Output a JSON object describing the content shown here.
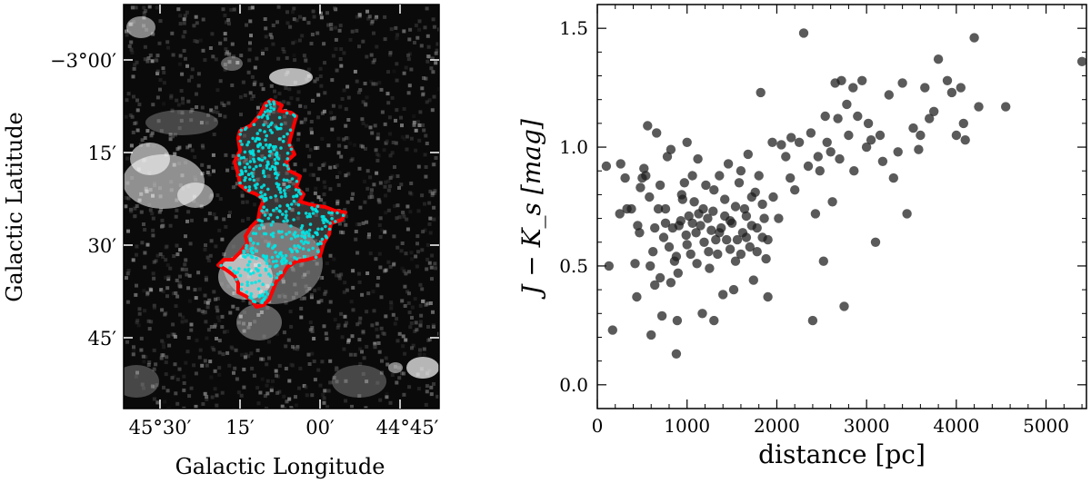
{
  "chart_data": [
    {
      "type": "heatmap",
      "title": "",
      "xlabel": "Galactic Longitude",
      "ylabel": "Galactic Latitude",
      "x_tick_labels": [
        "45°30′",
        "15′",
        "00′",
        "44°45′"
      ],
      "y_tick_labels": [
        "−3°00′",
        "15′",
        "30′",
        "45′"
      ],
      "colormap": "grayscale",
      "overlays": [
        {
          "kind": "contour",
          "color": "#ff0000"
        },
        {
          "kind": "points",
          "color": "#00e5e5"
        }
      ]
    },
    {
      "type": "scatter",
      "title": "",
      "xlabel": "distance [pc]",
      "ylabel": "J − K_s [mag]",
      "xlim": [
        0,
        5450
      ],
      "ylim": [
        -0.1,
        1.6
      ],
      "x_ticks": [
        0,
        1000,
        2000,
        3000,
        4000,
        5000
      ],
      "y_ticks": [
        0.0,
        0.5,
        1.0,
        1.5
      ],
      "x_tick_labels": [
        "0",
        "1000",
        "2000",
        "3000",
        "4000",
        "5000"
      ],
      "y_tick_labels": [
        "0.0",
        "0.5",
        "1.0",
        "1.5"
      ],
      "marker_color": "#1a1a1a",
      "series": [
        {
          "points": [
            [
              100,
              0.92
            ],
            [
              130,
              0.5
            ],
            [
              170,
              0.23
            ],
            [
              260,
              0.93
            ],
            [
              330,
              0.74
            ],
            [
              380,
              0.74
            ],
            [
              420,
              0.51
            ],
            [
              440,
              0.37
            ],
            [
              470,
              0.64
            ],
            [
              480,
              0.83
            ],
            [
              500,
              0.87
            ],
            [
              540,
              0.88
            ],
            [
              560,
              1.09
            ],
            [
              590,
              0.5
            ],
            [
              600,
              0.21
            ],
            [
              620,
              0.56
            ],
            [
              640,
              0.66
            ],
            [
              660,
              1.06
            ],
            [
              680,
              0.74
            ],
            [
              700,
              0.45
            ],
            [
              720,
              0.29
            ],
            [
              740,
              0.62
            ],
            [
              760,
              0.74
            ],
            [
              780,
              0.96
            ],
            [
              800,
              0.58
            ],
            [
              820,
              0.43
            ],
            [
              840,
              0.66
            ],
            [
              860,
              0.52
            ],
            [
              880,
              0.13
            ],
            [
              890,
              0.27
            ],
            [
              900,
              0.47
            ],
            [
              910,
              0.67
            ],
            [
              930,
              0.69
            ],
            [
              950,
              0.78
            ],
            [
              970,
              0.85
            ],
            [
              990,
              0.63
            ],
            [
              1000,
              1.02
            ],
            [
              1020,
              0.71
            ],
            [
              1040,
              0.55
            ],
            [
              1060,
              0.88
            ],
            [
              1080,
              0.77
            ],
            [
              1100,
              0.64
            ],
            [
              1110,
              0.51
            ],
            [
              1130,
              0.72
            ],
            [
              1150,
              0.67
            ],
            [
              1170,
              0.3
            ],
            [
              1190,
              0.6
            ],
            [
              1210,
              0.84
            ],
            [
              1230,
              0.7
            ],
            [
              1250,
              0.49
            ],
            [
              1270,
              0.65
            ],
            [
              1290,
              0.73
            ],
            [
              1300,
              0.27
            ],
            [
              1320,
              0.61
            ],
            [
              1340,
              0.55
            ],
            [
              1360,
              0.88
            ],
            [
              1380,
              0.66
            ],
            [
              1400,
              0.38
            ],
            [
              1420,
              0.71
            ],
            [
              1440,
              0.61
            ],
            [
              1460,
              0.93
            ],
            [
              1480,
              0.57
            ],
            [
              1500,
              0.68
            ],
            [
              1520,
              0.4
            ],
            [
              1540,
              0.75
            ],
            [
              1560,
              0.61
            ],
            [
              1580,
              0.85
            ],
            [
              1600,
              0.55
            ],
            [
              1620,
              0.64
            ],
            [
              1640,
              0.74
            ],
            [
              1660,
              0.62
            ],
            [
              1680,
              0.97
            ],
            [
              1700,
              0.58
            ],
            [
              1720,
              0.67
            ],
            [
              1740,
              0.44
            ],
            [
              1760,
              0.81
            ],
            [
              1780,
              0.56
            ],
            [
              1800,
              0.88
            ],
            [
              1820,
              1.23
            ],
            [
              1840,
              0.62
            ],
            [
              1860,
              0.7
            ],
            [
              1880,
              0.53
            ],
            [
              1900,
              0.37
            ],
            [
              1950,
              1.02
            ],
            [
              2050,
              1.01
            ],
            [
              2150,
              0.87
            ],
            [
              2200,
              0.82
            ],
            [
              2250,
              1.02
            ],
            [
              2300,
              1.48
            ],
            [
              2350,
              0.92
            ],
            [
              2400,
              0.27
            ],
            [
              2430,
              0.72
            ],
            [
              2480,
              0.9
            ],
            [
              2520,
              0.52
            ],
            [
              2560,
              1.02
            ],
            [
              2600,
              0.98
            ],
            [
              2650,
              1.27
            ],
            [
              2680,
              1.12
            ],
            [
              2700,
              0.95
            ],
            [
              2720,
              1.28
            ],
            [
              2750,
              0.33
            ],
            [
              2780,
              1.18
            ],
            [
              2800,
              1.05
            ],
            [
              2850,
              1.25
            ],
            [
              2900,
              1.13
            ],
            [
              2950,
              1.28
            ],
            [
              3000,
              1.0
            ],
            [
              3050,
              1.03
            ],
            [
              3100,
              0.6
            ],
            [
              3150,
              1.05
            ],
            [
              3250,
              1.22
            ],
            [
              3300,
              0.87
            ],
            [
              3350,
              0.98
            ],
            [
              3400,
              1.27
            ],
            [
              3520,
              1.08
            ],
            [
              3600,
              1.05
            ],
            [
              3650,
              1.25
            ],
            [
              3700,
              1.12
            ],
            [
              3750,
              1.15
            ],
            [
              3800,
              1.37
            ],
            [
              3900,
              1.28
            ],
            [
              3950,
              1.23
            ],
            [
              4000,
              1.05
            ],
            [
              4050,
              1.25
            ],
            [
              4100,
              1.03
            ],
            [
              4200,
              1.46
            ],
            [
              4250,
              1.17
            ],
            [
              4550,
              1.17
            ],
            [
              5400,
              1.36
            ],
            [
              250,
              0.72
            ],
            [
              310,
              0.87
            ],
            [
              450,
              0.67
            ],
            [
              520,
              0.91
            ],
            [
              580,
              0.79
            ],
            [
              640,
              0.42
            ],
            [
              700,
              0.84
            ],
            [
              760,
              0.68
            ],
            [
              820,
              0.99
            ],
            [
              880,
              0.54
            ],
            [
              940,
              0.8
            ],
            [
              1000,
              0.59
            ],
            [
              1060,
              0.68
            ],
            [
              1120,
              0.95
            ],
            [
              1180,
              0.74
            ],
            [
              1240,
              0.56
            ],
            [
              1300,
              0.82
            ],
            [
              1360,
              0.64
            ],
            [
              1420,
              0.78
            ],
            [
              1480,
              0.69
            ],
            [
              1540,
              0.52
            ],
            [
              1600,
              0.9
            ],
            [
              1660,
              0.71
            ],
            [
              1720,
              0.79
            ],
            [
              1780,
              0.66
            ],
            [
              1840,
              0.76
            ],
            [
              1900,
              0.61
            ],
            [
              1960,
              0.79
            ],
            [
              2020,
              0.7
            ],
            [
              2100,
              0.96
            ],
            [
              2160,
              1.04
            ],
            [
              2380,
              1.06
            ],
            [
              2460,
              0.96
            ],
            [
              2540,
              1.13
            ],
            [
              2620,
              0.77
            ],
            [
              2860,
              0.9
            ],
            [
              3020,
              1.1
            ],
            [
              3180,
              0.94
            ],
            [
              3450,
              0.72
            ],
            [
              3580,
              0.99
            ],
            [
              4080,
              1.1
            ]
          ]
        }
      ]
    }
  ]
}
